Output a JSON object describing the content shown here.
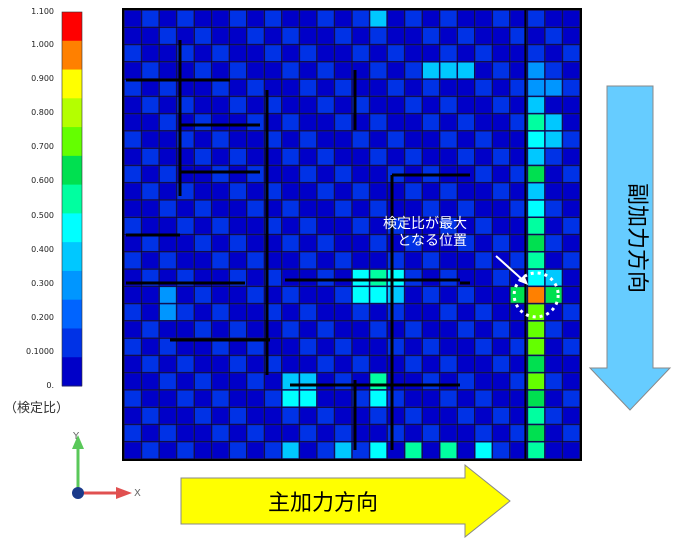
{
  "legend": {
    "ticks": [
      "1.100",
      "1.000",
      "0.900",
      "0.800",
      "0.700",
      "0.600",
      "0.500",
      "0.400",
      "0.300",
      "0.200",
      "0.1000",
      "0."
    ],
    "colors": [
      "#ff0000",
      "#ff8000",
      "#ffff00",
      "#b4ff00",
      "#64ff00",
      "#00e050",
      "#00ffa0",
      "#00ffff",
      "#00c8ff",
      "#0096ff",
      "#0064ff",
      "#0032e6",
      "#0000c8"
    ],
    "caption": "（検定比）"
  },
  "callout": {
    "line1": "検定比が最大",
    "line2": "となる位置"
  },
  "main_arrow": {
    "label": "主加力方向",
    "color": "#ffff00"
  },
  "sub_arrow": {
    "label": "副加力方向",
    "color": "#66ccff"
  },
  "axes": {
    "x": "X",
    "y": "Y"
  },
  "chart_data": {
    "type": "heatmap",
    "rows": 26,
    "cols": 26,
    "colorbar_range": [
      0,
      1.1
    ],
    "max_cell": {
      "row": 16,
      "col": 23,
      "value": 0.95
    },
    "highlights": [
      {
        "row": 0,
        "col": 14,
        "value": 0.35
      },
      {
        "row": 3,
        "col": 17,
        "value": 0.35
      },
      {
        "row": 3,
        "col": 18,
        "value": 0.35
      },
      {
        "row": 3,
        "col": 19,
        "value": 0.35
      },
      {
        "row": 3,
        "col": 23,
        "value": 0.28
      },
      {
        "row": 4,
        "col": 23,
        "value": 0.3
      },
      {
        "row": 4,
        "col": 24,
        "value": 0.3
      },
      {
        "row": 5,
        "col": 23,
        "value": 0.35
      },
      {
        "row": 6,
        "col": 23,
        "value": 0.55
      },
      {
        "row": 6,
        "col": 24,
        "value": 0.4
      },
      {
        "row": 7,
        "col": 23,
        "value": 0.5
      },
      {
        "row": 7,
        "col": 24,
        "value": 0.35
      },
      {
        "row": 8,
        "col": 23,
        "value": 0.35
      },
      {
        "row": 9,
        "col": 23,
        "value": 0.6
      },
      {
        "row": 10,
        "col": 23,
        "value": 0.35
      },
      {
        "row": 11,
        "col": 23,
        "value": 0.45
      },
      {
        "row": 12,
        "col": 23,
        "value": 0.55
      },
      {
        "row": 13,
        "col": 23,
        "value": 0.6
      },
      {
        "row": 14,
        "col": 23,
        "value": 0.55
      },
      {
        "row": 15,
        "col": 23,
        "value": 0.5
      },
      {
        "row": 15,
        "col": 24,
        "value": 0.35
      },
      {
        "row": 16,
        "col": 23,
        "value": 0.95
      },
      {
        "row": 16,
        "col": 22,
        "value": 0.6
      },
      {
        "row": 16,
        "col": 24,
        "value": 0.65
      },
      {
        "row": 17,
        "col": 23,
        "value": 0.7
      },
      {
        "row": 18,
        "col": 23,
        "value": 0.7
      },
      {
        "row": 19,
        "col": 23,
        "value": 0.7
      },
      {
        "row": 20,
        "col": 23,
        "value": 0.65
      },
      {
        "row": 21,
        "col": 23,
        "value": 0.7
      },
      {
        "row": 22,
        "col": 23,
        "value": 0.6
      },
      {
        "row": 23,
        "col": 23,
        "value": 0.55
      },
      {
        "row": 24,
        "col": 23,
        "value": 0.6
      },
      {
        "row": 25,
        "col": 23,
        "value": 0.55
      },
      {
        "row": 15,
        "col": 13,
        "value": 0.5
      },
      {
        "row": 15,
        "col": 14,
        "value": 0.55
      },
      {
        "row": 15,
        "col": 15,
        "value": 0.5
      },
      {
        "row": 16,
        "col": 13,
        "value": 0.5
      },
      {
        "row": 16,
        "col": 14,
        "value": 0.5
      },
      {
        "row": 16,
        "col": 15,
        "value": 0.35
      },
      {
        "row": 16,
        "col": 2,
        "value": 0.3
      },
      {
        "row": 17,
        "col": 2,
        "value": 0.3
      },
      {
        "row": 21,
        "col": 9,
        "value": 0.35
      },
      {
        "row": 21,
        "col": 10,
        "value": 0.35
      },
      {
        "row": 22,
        "col": 9,
        "value": 0.45
      },
      {
        "row": 22,
        "col": 10,
        "value": 0.45
      },
      {
        "row": 21,
        "col": 14,
        "value": 0.55
      },
      {
        "row": 22,
        "col": 14,
        "value": 0.45
      },
      {
        "row": 25,
        "col": 9,
        "value": 0.35
      },
      {
        "row": 25,
        "col": 12,
        "value": 0.4
      },
      {
        "row": 25,
        "col": 14,
        "value": 0.45
      },
      {
        "row": 25,
        "col": 16,
        "value": 0.55
      },
      {
        "row": 25,
        "col": 18,
        "value": 0.55
      },
      {
        "row": 25,
        "col": 20,
        "value": 0.5
      }
    ]
  }
}
